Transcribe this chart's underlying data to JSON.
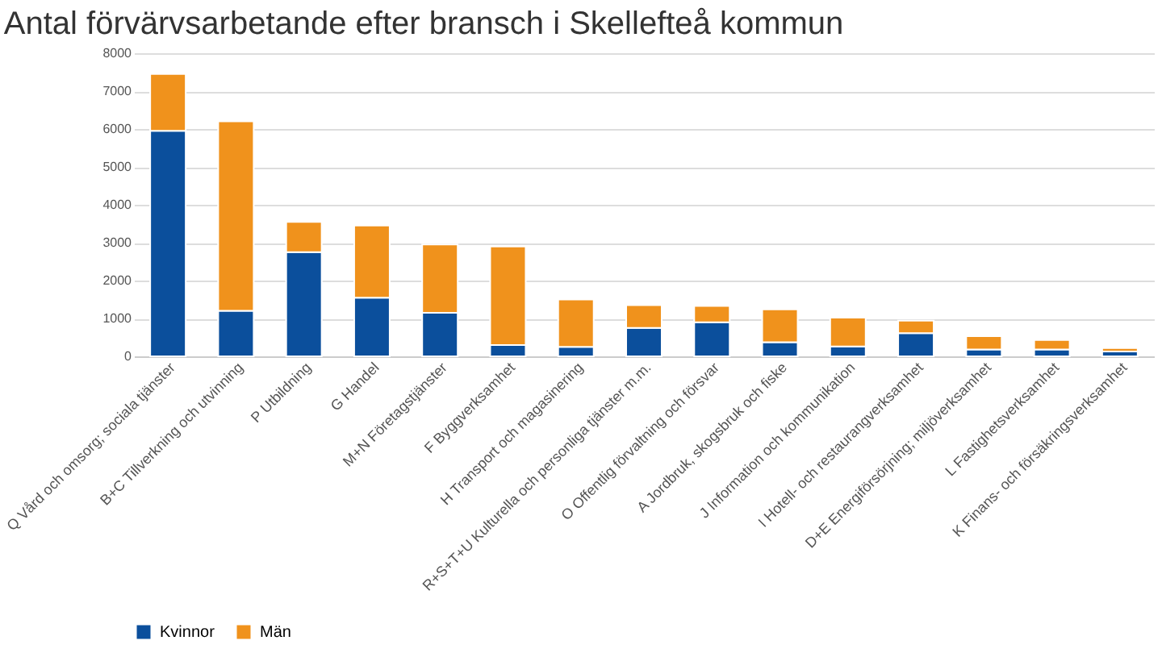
{
  "chart_data": {
    "type": "bar",
    "title": "Antal förvärvsarbetande efter bransch i Skellefteå kommun",
    "categories": [
      "Q Vård och omsorg; sociala tjänster",
      "B+C Tillverkning och utvinning",
      "P Utbildning",
      "G Handel",
      "M+N Företagstjänster",
      "F Byggverksamhet",
      "H Transport och magasinering",
      "R+S+T+U Kulturella och personliga tjänster m.m.",
      "O Offentlig förvaltning och försvar",
      "A Jordbruk, skogsbruk och fiske",
      "J Information och kommunikation",
      "I Hotell- och restaurangverksamhet",
      "D+E Energiförsörjning; miljöverksamhet",
      "L Fastighetsverksamhet",
      "K Finans- och försäkringsverksamhet"
    ],
    "series": [
      {
        "name": "Kvinnor",
        "color": "#0b4f9c",
        "values": [
          5950,
          1200,
          2750,
          1550,
          1150,
          300,
          250,
          750,
          900,
          370,
          260,
          610,
          180,
          180,
          130
        ]
      },
      {
        "name": "Män",
        "color": "#f0921c",
        "values": [
          1500,
          5000,
          800,
          1900,
          1800,
          2600,
          1250,
          600,
          430,
          870,
          760,
          330,
          350,
          250,
          90
        ]
      }
    ],
    "stacked": true,
    "ylim": [
      0,
      8000
    ],
    "yticks": [
      0,
      1000,
      2000,
      3000,
      4000,
      5000,
      6000,
      7000,
      8000
    ],
    "grid": "y",
    "legend": "bottom"
  }
}
